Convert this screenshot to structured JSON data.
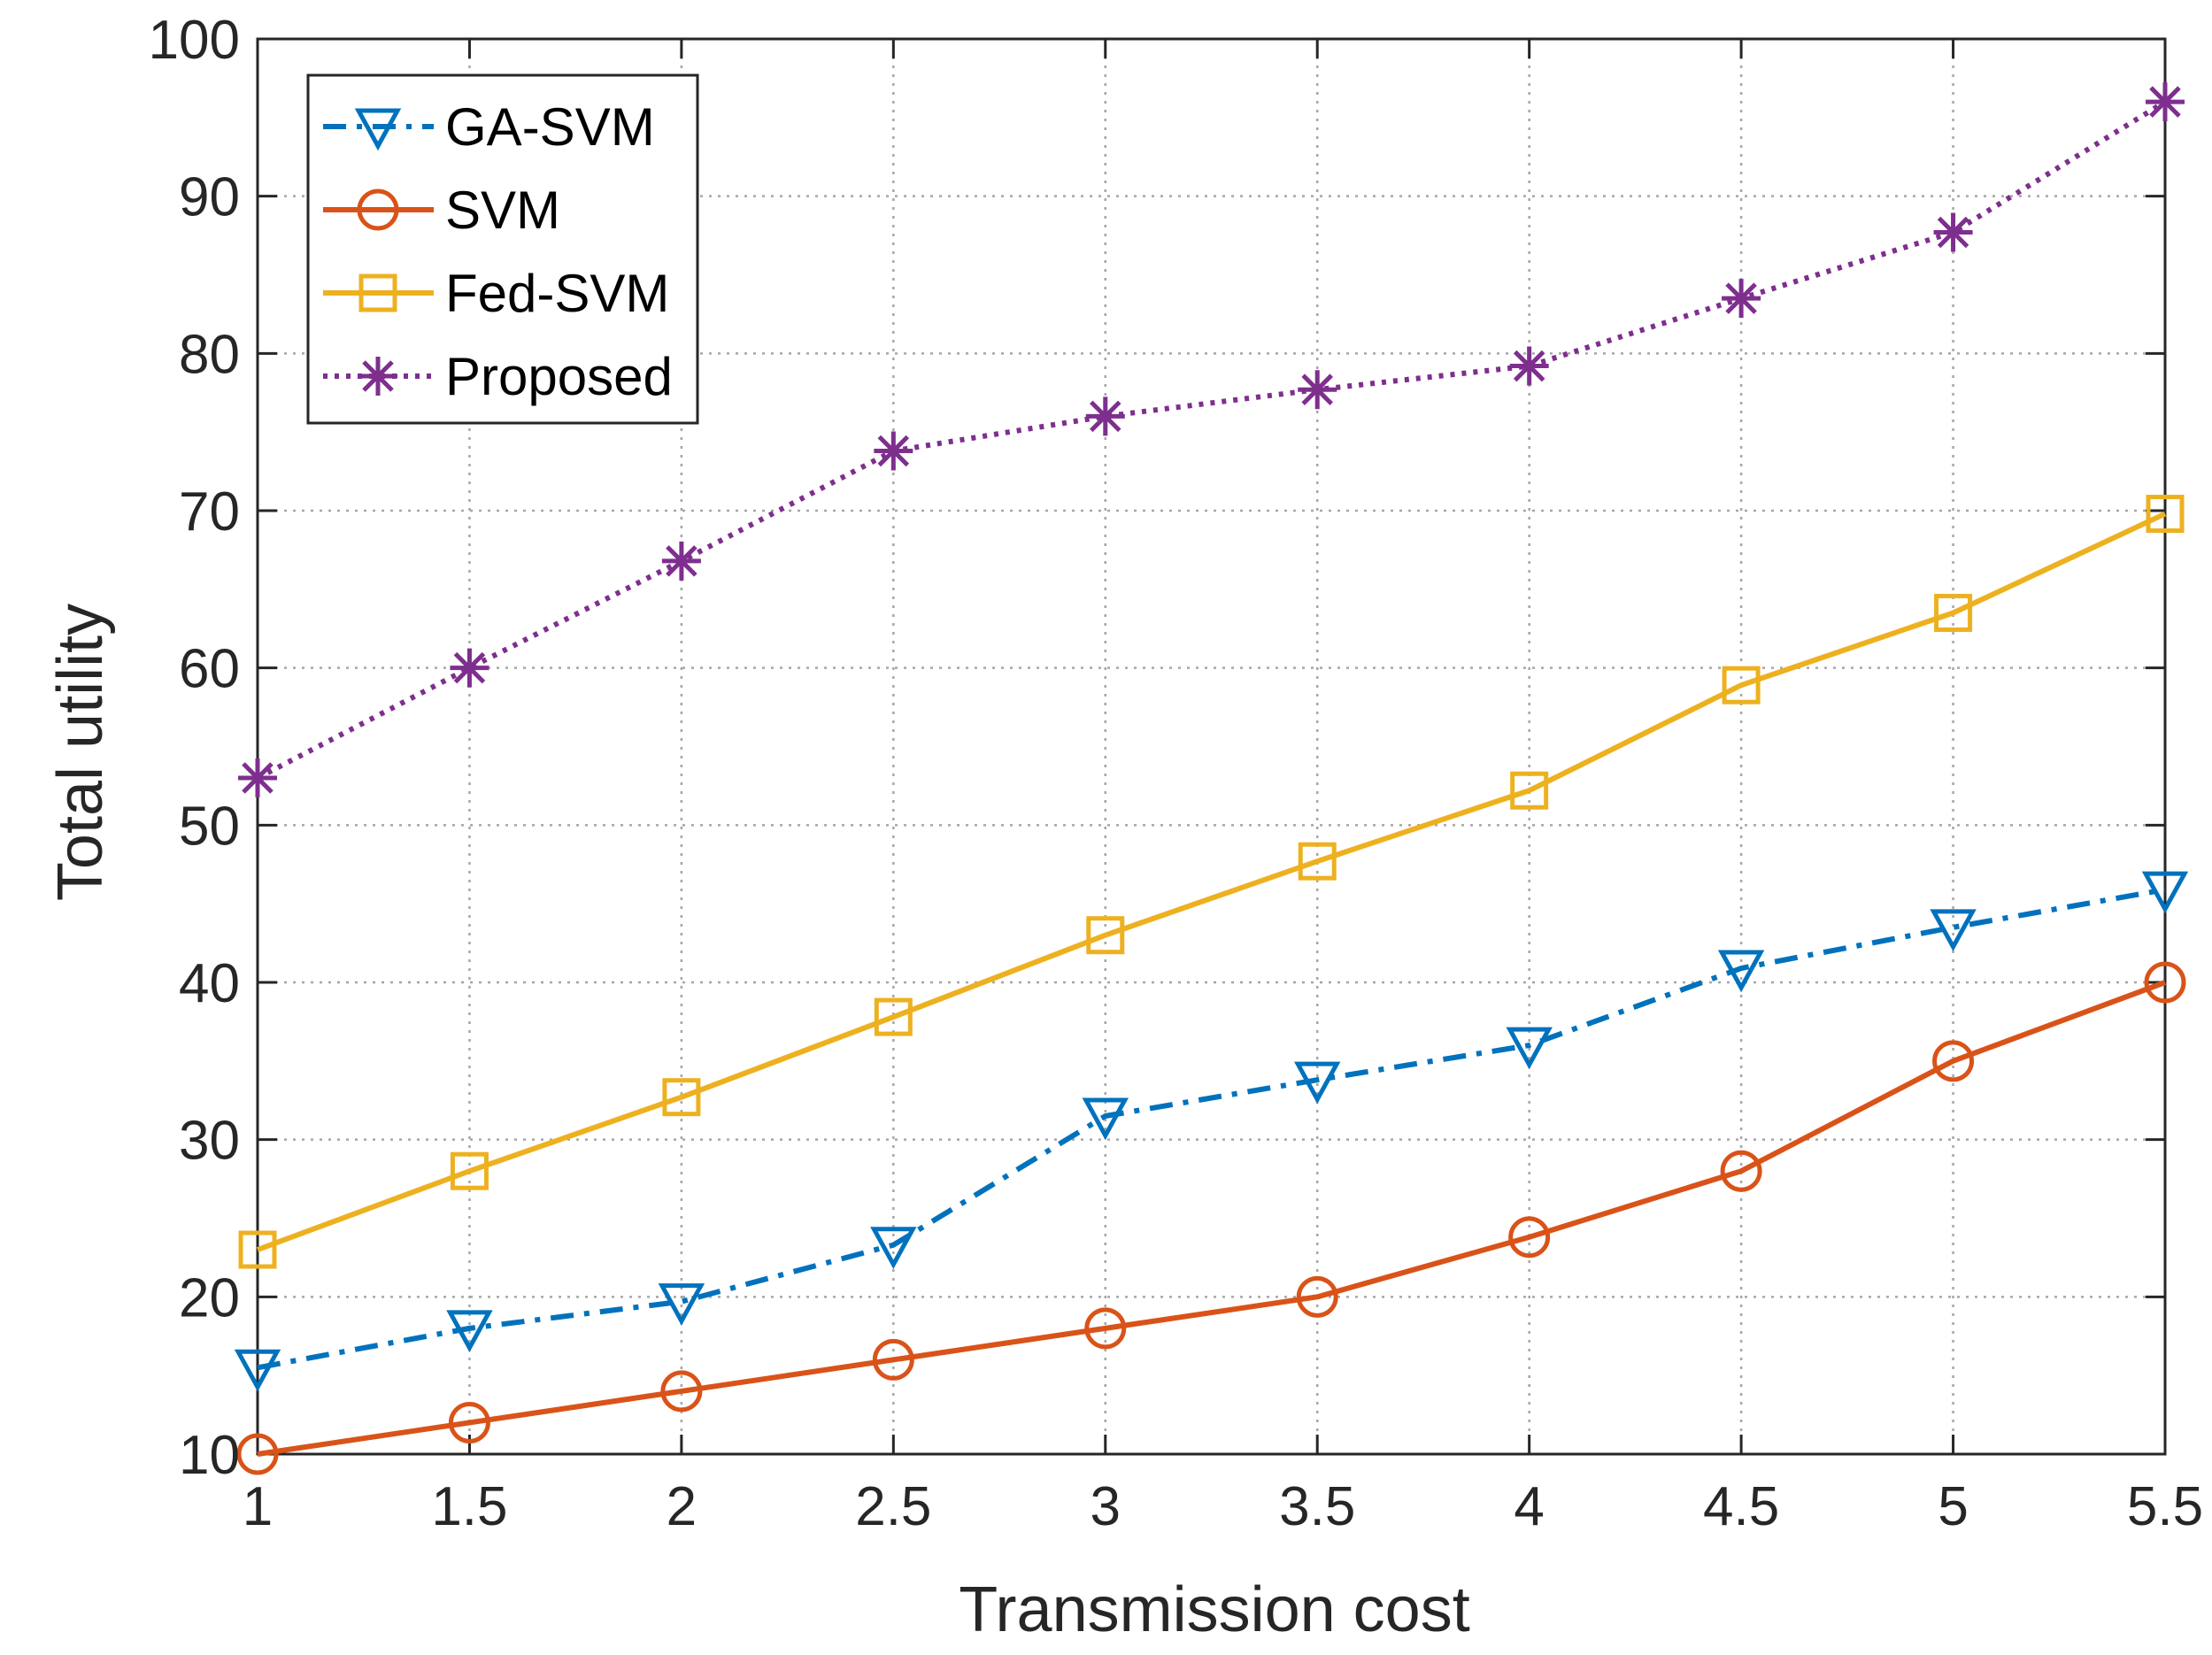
{
  "chart_data": {
    "type": "line",
    "title": "",
    "xlabel": "Transmission cost",
    "ylabel": "Total utility",
    "x": [
      1,
      1.5,
      2,
      2.5,
      3,
      3.5,
      4,
      4.5,
      5,
      5.5
    ],
    "xticks": [
      1,
      1.5,
      2,
      2.5,
      3,
      3.5,
      4,
      4.5,
      5,
      5.5
    ],
    "xtick_labels": [
      "1",
      "1.5",
      "2",
      "2.5",
      "3",
      "3.5",
      "4",
      "4.5",
      "5",
      "5.5"
    ],
    "yticks": [
      10,
      20,
      30,
      40,
      50,
      60,
      70,
      80,
      90,
      100
    ],
    "ytick_labels": [
      "10",
      "20",
      "30",
      "40",
      "50",
      "60",
      "70",
      "80",
      "90",
      "100"
    ],
    "xlim": [
      1,
      5.5
    ],
    "ylim": [
      10,
      100
    ],
    "grid": true,
    "legend_position": "top-left",
    "series": [
      {
        "name": "GA-SVM",
        "color": "#0072BD",
        "line_style": "dash-dot",
        "marker": "triangle-down",
        "values": [
          15.5,
          18,
          19.7,
          23.3,
          31.5,
          33.8,
          36,
          40.9,
          43.5,
          45.9
        ]
      },
      {
        "name": "SVM",
        "color": "#D95319",
        "line_style": "solid",
        "marker": "circle",
        "values": [
          10,
          12,
          14,
          16,
          18,
          20,
          23.8,
          28,
          35,
          40
        ]
      },
      {
        "name": "Fed-SVM",
        "color": "#EDB120",
        "line_style": "solid",
        "marker": "square",
        "values": [
          23,
          28,
          32.7,
          37.8,
          43,
          47.7,
          52.2,
          58.9,
          63.5,
          69.8
        ]
      },
      {
        "name": "Proposed",
        "color": "#7E2F8E",
        "line_style": "dotted",
        "marker": "asterisk",
        "values": [
          53,
          60,
          66.8,
          73.8,
          76,
          77.7,
          79.2,
          83.5,
          87.7,
          96
        ]
      }
    ]
  }
}
